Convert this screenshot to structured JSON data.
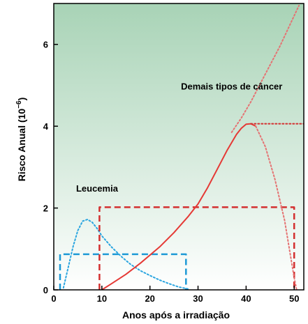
{
  "chart_data": {
    "type": "line",
    "xlabel": "Anos após a irradiação",
    "ylabel_main": "Risco Anual (10",
    "ylabel_exp": "−6",
    "ylabel_close": ")",
    "xlim": [
      0,
      52
    ],
    "ylim": [
      0,
      7
    ],
    "x_ticks": [
      0,
      10,
      20,
      30,
      40,
      50
    ],
    "y_ticks": [
      0,
      2,
      4,
      6
    ],
    "background": {
      "top": "#a8d3b6",
      "bottom": "#ffffff"
    },
    "annotations": [
      {
        "id": "demais",
        "text": "Demais tipos de câncer",
        "x": 37,
        "y": 4.9
      },
      {
        "id": "leucemia",
        "text": "Leucemia",
        "x": 9,
        "y": 2.4
      }
    ],
    "series": [
      {
        "id": "leukemia-model",
        "color": "#1e9ad6",
        "style": "dashed",
        "points": [
          [
            1.3,
            0
          ],
          [
            1.3,
            0.87
          ],
          [
            2,
            0.87
          ],
          [
            27.5,
            0.87
          ],
          [
            27.5,
            0
          ]
        ]
      },
      {
        "id": "leukemia-curve",
        "color": "#2aa5e0",
        "style": "dotted",
        "points": [
          [
            2,
            0.05
          ],
          [
            3,
            0.55
          ],
          [
            4,
            1.05
          ],
          [
            5,
            1.45
          ],
          [
            6,
            1.68
          ],
          [
            7,
            1.72
          ],
          [
            8,
            1.65
          ],
          [
            9,
            1.5
          ],
          [
            10,
            1.32
          ],
          [
            12,
            1.05
          ],
          [
            14,
            0.82
          ],
          [
            16,
            0.62
          ],
          [
            18,
            0.47
          ],
          [
            20,
            0.35
          ],
          [
            22,
            0.24
          ],
          [
            24,
            0.15
          ],
          [
            26,
            0.07
          ],
          [
            28,
            0.02
          ]
        ]
      },
      {
        "id": "solid-model",
        "color": "#d32f2f",
        "style": "dashed",
        "points": [
          [
            9.5,
            0
          ],
          [
            9.5,
            2.02
          ],
          [
            10,
            2.02
          ],
          [
            50,
            2.02
          ],
          [
            50,
            0
          ]
        ]
      },
      {
        "id": "solid-observed",
        "color": "#e53935",
        "style": "solid",
        "points": [
          [
            10,
            0
          ],
          [
            12,
            0.15
          ],
          [
            15,
            0.38
          ],
          [
            18,
            0.65
          ],
          [
            20,
            0.85
          ],
          [
            22,
            1.05
          ],
          [
            25,
            1.4
          ],
          [
            28,
            1.8
          ],
          [
            30,
            2.1
          ],
          [
            32,
            2.5
          ],
          [
            34,
            2.95
          ],
          [
            36,
            3.4
          ],
          [
            38,
            3.8
          ],
          [
            39,
            3.95
          ],
          [
            40,
            4.05
          ],
          [
            41,
            4.06
          ],
          [
            42,
            4.0
          ]
        ]
      },
      {
        "id": "solid-decline",
        "color": "#e57373",
        "style": "dotted",
        "points": [
          [
            42,
            4.0
          ],
          [
            44,
            3.5
          ],
          [
            46,
            2.7
          ],
          [
            48,
            1.7
          ],
          [
            49,
            1.0
          ],
          [
            50,
            0.3
          ],
          [
            50.5,
            0
          ]
        ]
      },
      {
        "id": "solid-linear-extrapolation",
        "color": "#e57373",
        "style": "dotted",
        "points": [
          [
            37,
            3.85
          ],
          [
            39,
            4.2
          ],
          [
            41,
            4.6
          ],
          [
            43,
            5.05
          ],
          [
            45,
            5.5
          ],
          [
            47,
            5.95
          ],
          [
            49,
            6.45
          ],
          [
            51,
            6.95
          ]
        ]
      },
      {
        "id": "solid-plateau",
        "color": "#d32f2f",
        "style": "dotted",
        "points": [
          [
            41,
            4.06
          ],
          [
            52,
            4.06
          ]
        ]
      }
    ]
  }
}
